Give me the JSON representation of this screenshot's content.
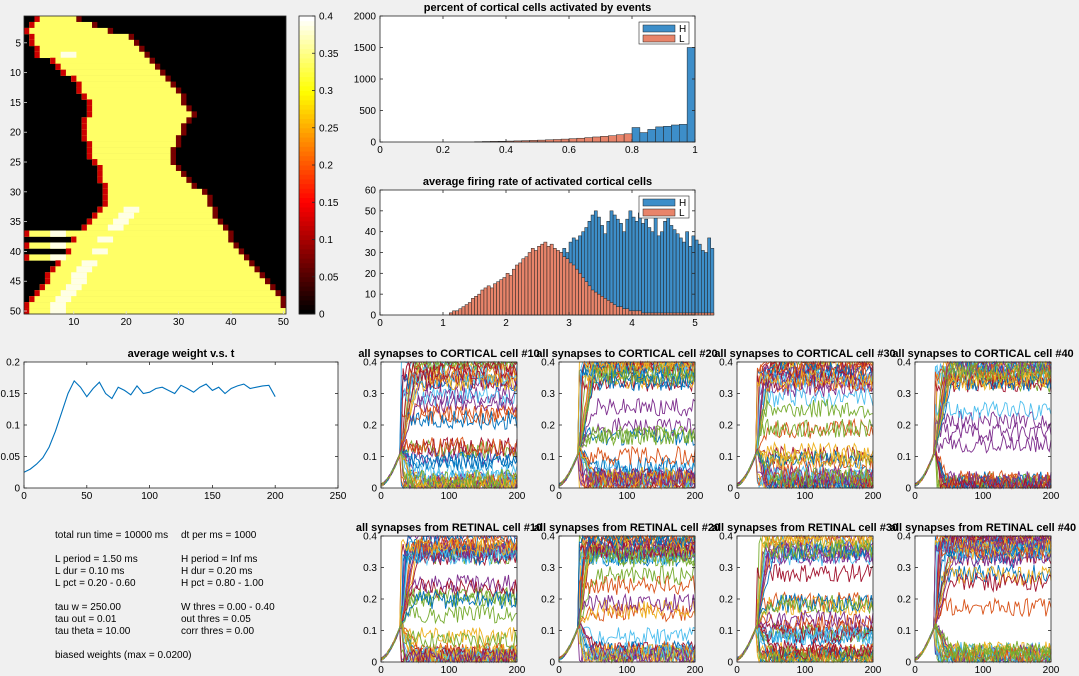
{
  "colors": {
    "H": "#3d8ec9",
    "L": "#e8846a",
    "line": "#0072bd",
    "colormap": "hot",
    "series_palette": [
      "#0072bd",
      "#d95319",
      "#edb120",
      "#7e2f8e",
      "#77ac30",
      "#4dbeee",
      "#a2142f"
    ]
  },
  "params": {
    "run_time": "total run time = 10000 ms",
    "dt_per_ms": "dt per ms = 1000",
    "L_period": "L period = 1.50 ms",
    "H_period": "H period = Inf ms",
    "L_dur": "L dur = 0.10 ms",
    "H_dur": "H dur = 0.20 ms",
    "L_pct": "L pct = 0.20 - 0.60",
    "H_pct": "H pct = 0.80 - 1.00",
    "tau_w": "tau w = 250.00",
    "W_thres": "W thres = 0.00 - 0.40",
    "tau_out": "tau out = 0.01",
    "out_thres": "out thres = 0.05",
    "tau_theta": "tau theta = 10.00",
    "corr_thres": "corr thres = 0.00",
    "biased": "biased weights (max = 0.0200)"
  },
  "chart_data": [
    {
      "id": "heatmap",
      "type": "heatmap",
      "title": "",
      "rows": 50,
      "cols": 50,
      "xticks": [
        10,
        20,
        30,
        40,
        50
      ],
      "yticks": [
        5,
        10,
        15,
        20,
        25,
        30,
        35,
        40,
        45,
        50
      ],
      "colorbar": {
        "min": 0,
        "max": 0.4,
        "ticks": [
          0,
          0.05,
          0.1,
          0.15,
          0.2,
          0.25,
          0.3,
          0.35,
          0.4
        ],
        "colormap": "hot"
      },
      "row_spans": [
        [
          3,
          10
        ],
        [
          2,
          13
        ],
        [
          1,
          16
        ],
        [
          2,
          20
        ],
        [
          2,
          21
        ],
        [
          3,
          22
        ],
        [
          3,
          23
        ],
        [
          6,
          24
        ],
        [
          7,
          25
        ],
        [
          8,
          26
        ],
        [
          10,
          27
        ],
        [
          11,
          28
        ],
        [
          11,
          29
        ],
        [
          12,
          30
        ],
        [
          13,
          30
        ],
        [
          13,
          31
        ],
        [
          13,
          32
        ],
        [
          12,
          31
        ],
        [
          12,
          30
        ],
        [
          12,
          30
        ],
        [
          12,
          29
        ],
        [
          13,
          29
        ],
        [
          13,
          28
        ],
        [
          13,
          28
        ],
        [
          14,
          28
        ],
        [
          15,
          29
        ],
        [
          15,
          30
        ],
        [
          15,
          31
        ],
        [
          16,
          32
        ],
        [
          16,
          34
        ],
        [
          16,
          35
        ],
        [
          16,
          35
        ],
        [
          15,
          36
        ],
        [
          14,
          36
        ],
        [
          13,
          37
        ],
        [
          12,
          38
        ],
        [
          1,
          39
        ],
        [
          10,
          39
        ],
        [
          1,
          40
        ],
        [
          9,
          41
        ],
        [
          1,
          42
        ],
        [
          7,
          43
        ],
        [
          6,
          44
        ],
        [
          5,
          45
        ],
        [
          5,
          46
        ],
        [
          4,
          47
        ],
        [
          3,
          48
        ],
        [
          2,
          49
        ],
        [
          1,
          49
        ],
        [
          1,
          50
        ]
      ]
    },
    {
      "id": "hist1",
      "type": "bar",
      "title": "percent of cortical cells activated by events",
      "xlim": [
        0,
        1
      ],
      "ylim": [
        0,
        2000
      ],
      "xticks": [
        0,
        0.2,
        0.4,
        0.6,
        0.8,
        1
      ],
      "yticks": [
        0,
        500,
        1000,
        1500,
        2000
      ],
      "legend": {
        "position": "top-right",
        "entries": [
          "H",
          "L"
        ]
      },
      "series": [
        {
          "name": "L",
          "bin_start": 0.3,
          "bin_width": 0.025,
          "values": [
            5,
            8,
            10,
            12,
            15,
            18,
            22,
            26,
            30,
            35,
            40,
            46,
            53,
            60,
            70,
            80,
            90,
            100,
            115,
            130
          ]
        },
        {
          "name": "H",
          "bin_start": 0.8,
          "bin_width": 0.025,
          "values": [
            230,
            150,
            200,
            240,
            250,
            270,
            280,
            1500
          ]
        }
      ]
    },
    {
      "id": "hist2",
      "type": "bar",
      "title": "average firing rate of activated cortical cells",
      "xlim": [
        0,
        5
      ],
      "ylim": [
        0,
        60
      ],
      "xticks": [
        0,
        1,
        2,
        3,
        4,
        5
      ],
      "yticks": [
        0,
        10,
        20,
        30,
        40,
        50,
        60
      ],
      "legend": {
        "position": "top-right",
        "entries": [
          "H",
          "L"
        ]
      },
      "series": [
        {
          "name": "H",
          "bin_start": 1.1,
          "bin_width": 0.05,
          "values": [
            1,
            1,
            2,
            1,
            2,
            2,
            3,
            2,
            3,
            3,
            4,
            3,
            5,
            4,
            6,
            5,
            7,
            6,
            8,
            7,
            10,
            9,
            12,
            11,
            14,
            13,
            16,
            18,
            20,
            17,
            22,
            20,
            25,
            24,
            28,
            30,
            32,
            30,
            35,
            37,
            36,
            38,
            40,
            42,
            45,
            48,
            50,
            47,
            43,
            39,
            45,
            50,
            48,
            46,
            44,
            40,
            46,
            50,
            47,
            45,
            49,
            44,
            46,
            42,
            40,
            47,
            38,
            40,
            45,
            49,
            43,
            41,
            39,
            37,
            35,
            40,
            33,
            38,
            36,
            34,
            31,
            30,
            37,
            32
          ]
        },
        {
          "name": "L",
          "bin_start": 1.1,
          "bin_width": 0.05,
          "values": [
            1,
            2,
            2,
            3,
            4,
            5,
            6,
            8,
            9,
            10,
            12,
            13,
            14,
            13,
            15,
            16,
            17,
            18,
            20,
            19,
            22,
            24,
            25,
            27,
            28,
            30,
            32,
            31,
            33,
            34,
            35,
            33,
            34,
            32,
            31,
            30,
            28,
            27,
            25,
            24,
            22,
            20,
            18,
            16,
            14,
            12,
            11,
            10,
            9,
            8,
            7,
            6,
            5,
            4,
            4,
            3,
            3,
            2,
            2,
            2,
            2,
            1,
            1,
            1,
            1,
            1,
            1,
            1,
            1,
            1,
            1,
            1,
            1,
            1,
            1,
            1,
            1,
            1,
            1,
            1,
            1,
            1,
            1,
            1
          ]
        }
      ]
    },
    {
      "id": "avgw",
      "type": "line",
      "title": "average weight v.s. t",
      "xlim": [
        0,
        250
      ],
      "ylim": [
        0,
        0.2
      ],
      "xticks": [
        0,
        50,
        100,
        150,
        200,
        250
      ],
      "yticks": [
        0,
        0.05,
        0.1,
        0.15,
        0.2
      ],
      "series": [
        {
          "x_start": 0,
          "x_step": 5,
          "values": [
            0.025,
            0.03,
            0.038,
            0.048,
            0.065,
            0.09,
            0.12,
            0.15,
            0.17,
            0.16,
            0.145,
            0.158,
            0.168,
            0.15,
            0.142,
            0.16,
            0.155,
            0.148,
            0.162,
            0.15,
            0.152,
            0.158,
            0.16,
            0.155,
            0.15,
            0.163,
            0.158,
            0.152,
            0.16,
            0.165,
            0.155,
            0.16,
            0.15,
            0.158,
            0.162,
            0.165,
            0.158,
            0.16,
            0.162,
            0.163,
            0.145
          ]
        }
      ]
    },
    {
      "id": "c10",
      "type": "line",
      "title": "all synapses to CORTICAL cell #10",
      "seed": 11,
      "xlim": [
        0,
        200
      ],
      "ylim": [
        0,
        0.4
      ],
      "xticks": [
        0,
        100,
        200
      ],
      "yticks": [
        0,
        0.1,
        0.2,
        0.3,
        0.4
      ],
      "n_series": 40
    },
    {
      "id": "c20",
      "type": "line",
      "title": "all synapses to CORTICAL cell #20",
      "seed": 21,
      "xlim": [
        0,
        200
      ],
      "ylim": [
        0,
        0.4
      ],
      "xticks": [
        0,
        100,
        200
      ],
      "yticks": [
        0,
        0.1,
        0.2,
        0.3,
        0.4
      ],
      "n_series": 40
    },
    {
      "id": "c30",
      "type": "line",
      "title": "all synapses to CORTICAL cell #30",
      "seed": 31,
      "xlim": [
        0,
        200
      ],
      "ylim": [
        0,
        0.4
      ],
      "xticks": [
        0,
        100,
        200
      ],
      "yticks": [
        0,
        0.1,
        0.2,
        0.3,
        0.4
      ],
      "n_series": 40
    },
    {
      "id": "c40",
      "type": "line",
      "title": "all synapses to CORTICAL cell #40",
      "seed": 41,
      "xlim": [
        0,
        200
      ],
      "ylim": [
        0,
        0.4
      ],
      "xticks": [
        0,
        100,
        200
      ],
      "yticks": [
        0,
        0.1,
        0.2,
        0.3,
        0.4
      ],
      "n_series": 40
    },
    {
      "id": "r10",
      "type": "line",
      "title": "all synapses from RETINAL cell #10",
      "seed": 12,
      "xlim": [
        0,
        200
      ],
      "ylim": [
        0,
        0.4
      ],
      "xticks": [
        0,
        100,
        200
      ],
      "yticks": [
        0,
        0.1,
        0.2,
        0.3,
        0.4
      ],
      "n_series": 40
    },
    {
      "id": "r20",
      "type": "line",
      "title": "all synapses from RETINAL cell #20",
      "seed": 22,
      "xlim": [
        0,
        200
      ],
      "ylim": [
        0,
        0.4
      ],
      "xticks": [
        0,
        100,
        200
      ],
      "yticks": [
        0,
        0.1,
        0.2,
        0.3,
        0.4
      ],
      "n_series": 40
    },
    {
      "id": "r30",
      "type": "line",
      "title": "all synapses from RETINAL cell #30",
      "seed": 32,
      "xlim": [
        0,
        200
      ],
      "ylim": [
        0,
        0.4
      ],
      "xticks": [
        0,
        100,
        200
      ],
      "yticks": [
        0,
        0.1,
        0.2,
        0.3,
        0.4
      ],
      "n_series": 40
    },
    {
      "id": "r40",
      "type": "line",
      "title": "all synapses from RETINAL cell #40",
      "seed": 42,
      "xlim": [
        0,
        200
      ],
      "ylim": [
        0,
        0.4
      ],
      "xticks": [
        0,
        100,
        200
      ],
      "yticks": [
        0,
        0.1,
        0.2,
        0.3,
        0.4
      ],
      "n_series": 40
    }
  ]
}
